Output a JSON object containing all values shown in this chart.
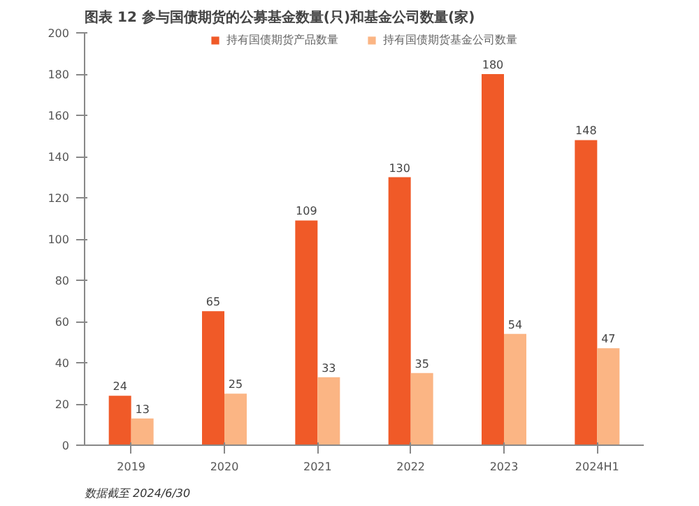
{
  "chart_data": {
    "type": "bar",
    "title": "图表 12   参与国债期货的公募基金数量(只)和基金公司数量(家)",
    "categories": [
      "2019",
      "2020",
      "2021",
      "2022",
      "2023",
      "2024H1"
    ],
    "series": [
      {
        "name": "持有国债期货产品数量",
        "color": "#f05a28",
        "values": [
          24,
          65,
          109,
          130,
          180,
          148
        ]
      },
      {
        "name": "持有国债期货基金公司数量",
        "color": "#fbb584",
        "values": [
          13,
          25,
          33,
          35,
          54,
          47
        ]
      }
    ],
    "ylim": [
      0,
      200
    ],
    "yticks": [
      0,
      20,
      40,
      60,
      80,
      100,
      120,
      140,
      160,
      180,
      200
    ],
    "grid": false,
    "legend": "top",
    "data_labels": true,
    "annotations": [
      "数据截至 2024/6/30"
    ]
  }
}
